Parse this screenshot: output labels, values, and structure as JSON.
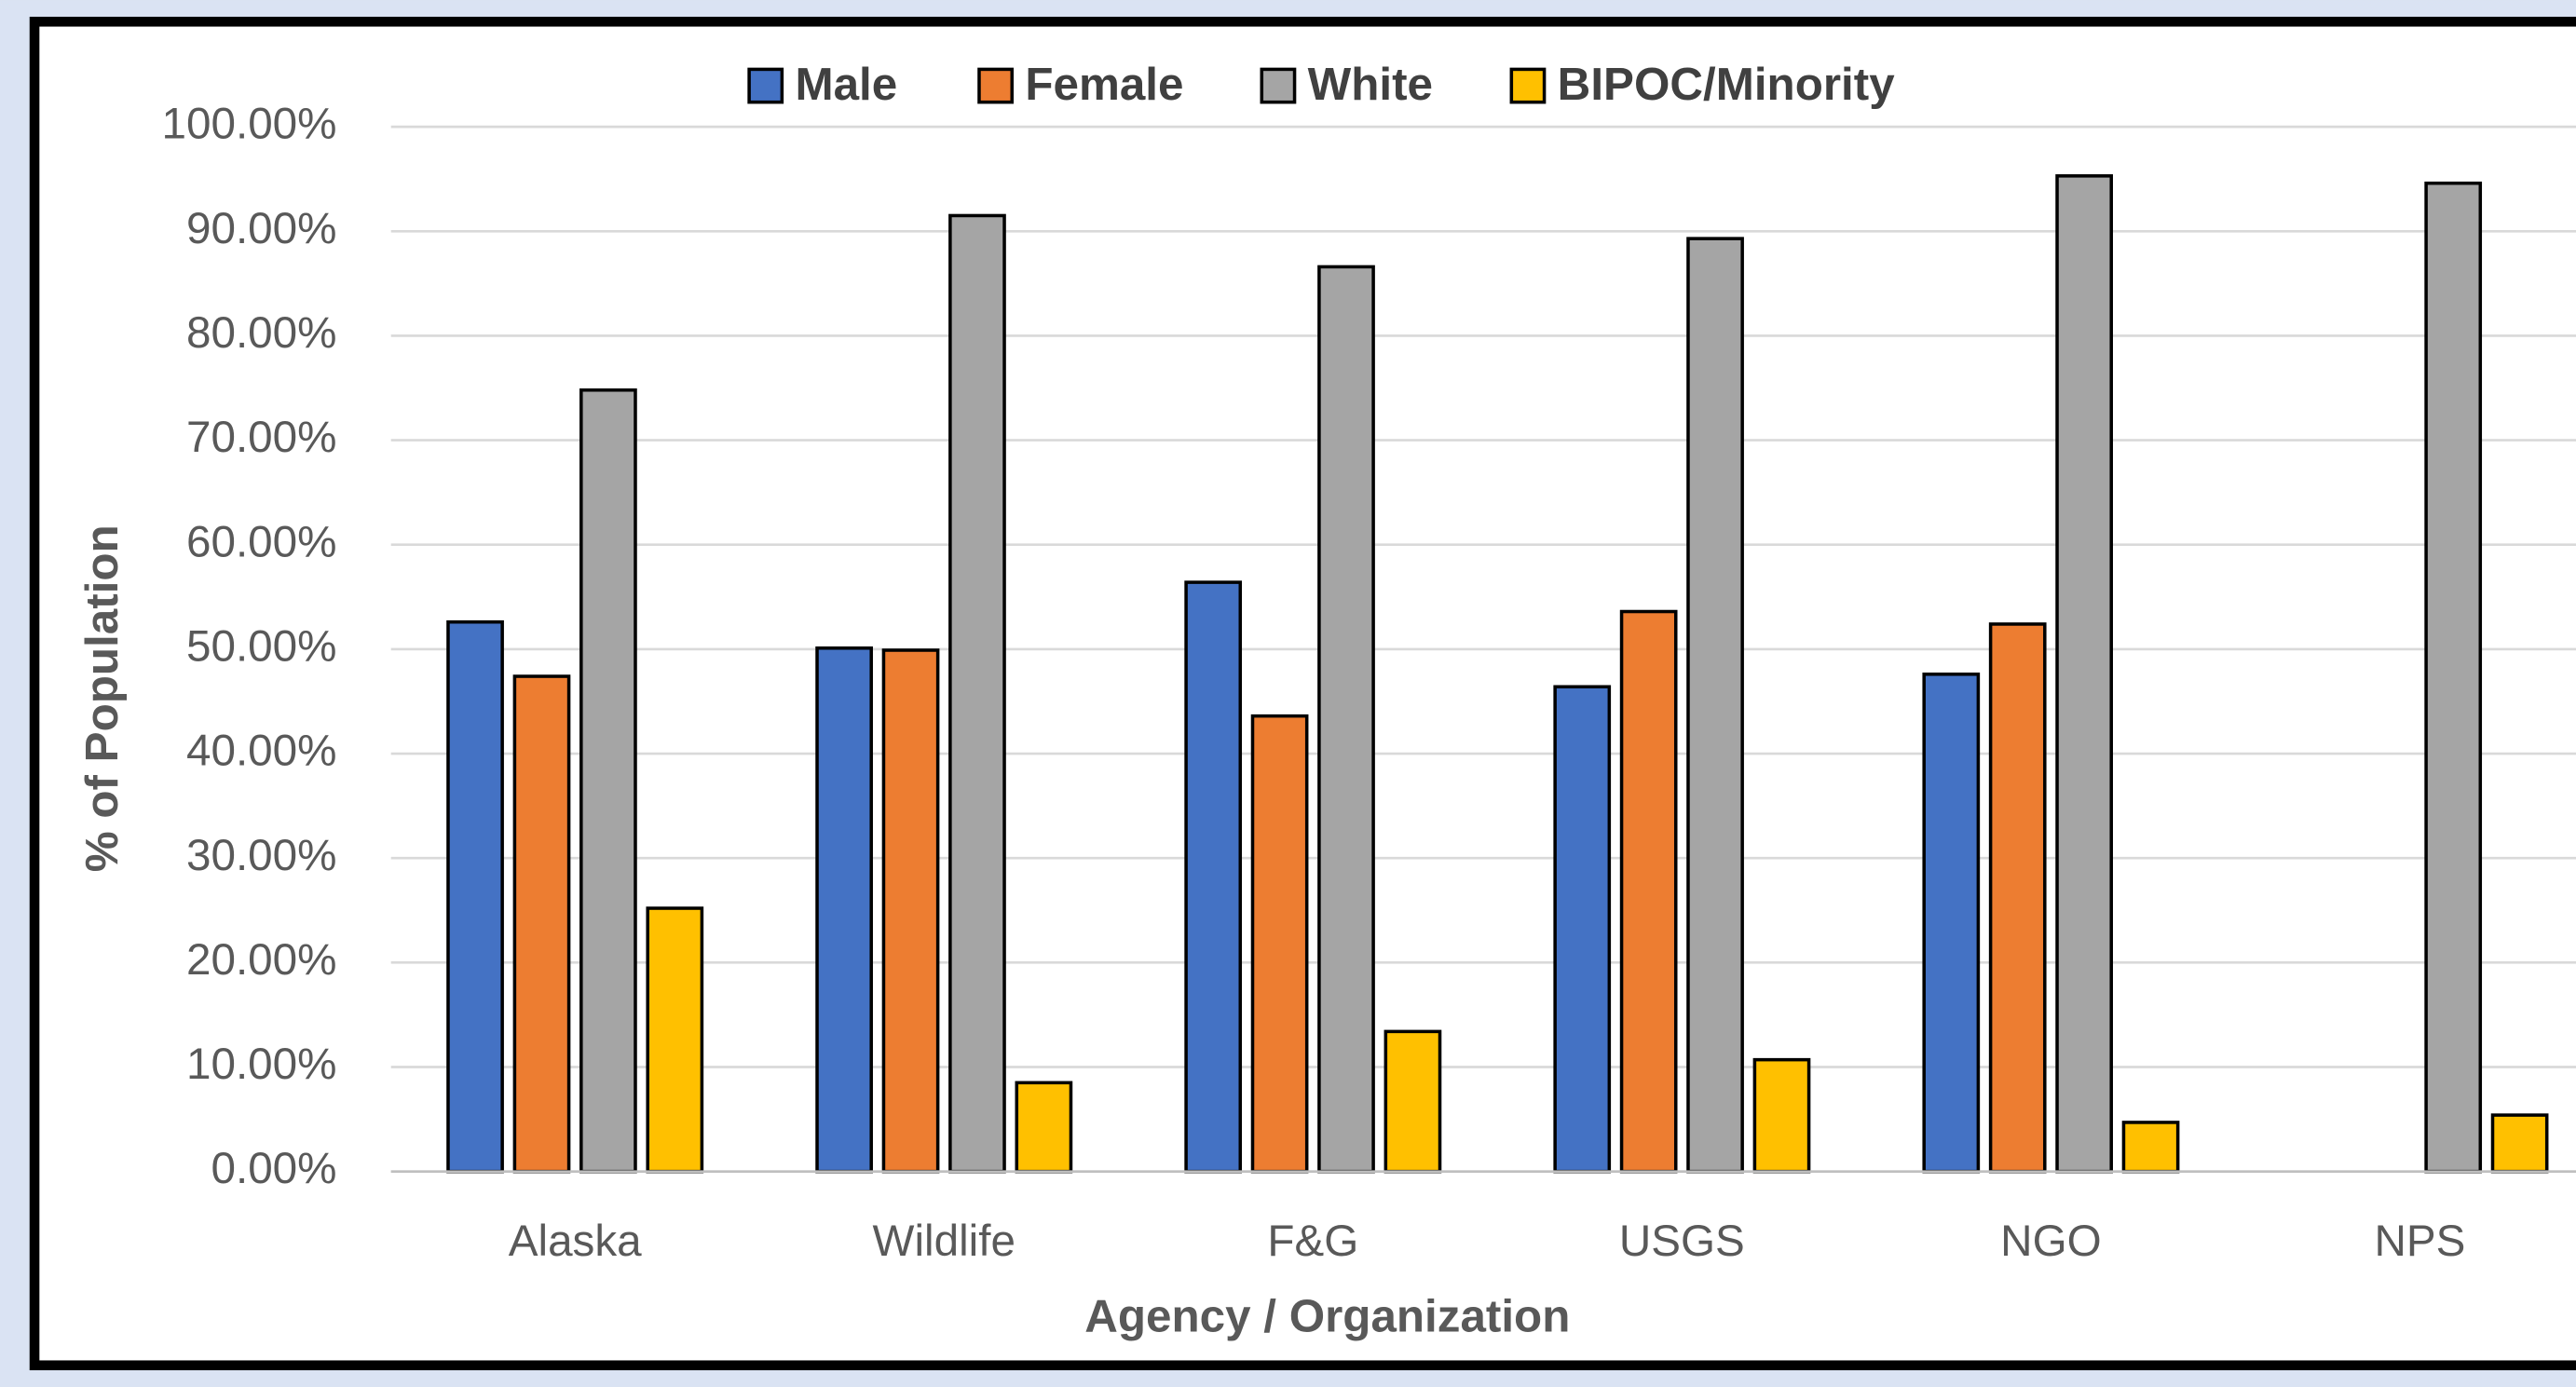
{
  "chart_data": {
    "type": "bar",
    "categories": [
      "Alaska",
      "Wildlife",
      "F&G",
      "USGS",
      "NGO",
      "NPS"
    ],
    "series": [
      {
        "name": "Male",
        "color": "#4472c4",
        "values": [
          52.6,
          50.1,
          56.4,
          46.4,
          47.6,
          null
        ]
      },
      {
        "name": "Female",
        "color": "#ed7d31",
        "values": [
          47.4,
          49.9,
          43.6,
          53.6,
          52.4,
          null
        ]
      },
      {
        "name": "White",
        "color": "#a5a5a5",
        "values": [
          74.8,
          91.5,
          86.6,
          89.3,
          95.3,
          94.6
        ]
      },
      {
        "name": "BIPOC/Minority",
        "color": "#ffc000",
        "values": [
          25.2,
          8.5,
          13.4,
          10.7,
          4.7,
          5.4
        ]
      }
    ],
    "ylim": [
      0,
      100
    ],
    "yticks": [
      {
        "value": 0,
        "label": "0.00%"
      },
      {
        "value": 10,
        "label": "10.00%"
      },
      {
        "value": 20,
        "label": "20.00%"
      },
      {
        "value": 30,
        "label": "30.00%"
      },
      {
        "value": 40,
        "label": "40.00%"
      },
      {
        "value": 50,
        "label": "50.00%"
      },
      {
        "value": 60,
        "label": "60.00%"
      },
      {
        "value": 70,
        "label": "70.00%"
      },
      {
        "value": 80,
        "label": "80.00%"
      },
      {
        "value": 90,
        "label": "90.00%"
      },
      {
        "value": 100,
        "label": "100.00%"
      }
    ],
    "y_label": "% of Population",
    "x_label": "Agency / Organization",
    "grid": true,
    "legend": "top"
  }
}
